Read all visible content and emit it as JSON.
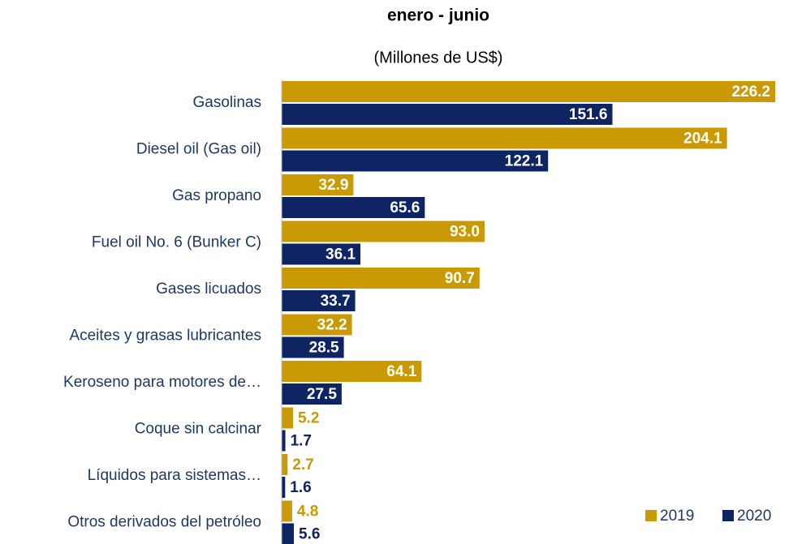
{
  "chart_data": {
    "type": "barh",
    "title": "enero - junio",
    "subtitle": "(Millones de US$)",
    "categories": [
      "Gasolinas",
      "Diesel oil (Gas oil)",
      "Gas propano",
      "Fuel oil No. 6 (Bunker C)",
      "Gases licuados",
      "Aceites y grasas lubricantes",
      "Keroseno para motores de…",
      "Coque sin calcinar",
      "Líquidos para sistemas…",
      "Otros derivados del petróleo"
    ],
    "series": [
      {
        "name": "2019",
        "color": "#c99a06",
        "values": [
          226.2,
          204.1,
          32.9,
          93.0,
          90.7,
          32.2,
          64.1,
          5.2,
          2.7,
          4.8
        ],
        "value_labels": [
          "226.2",
          "204.1",
          "32.9",
          "93.0",
          "90.7",
          "32.2",
          "64.1",
          "5.2",
          "2.7",
          "4.8"
        ]
      },
      {
        "name": "2020",
        "color": "#0f2463",
        "values": [
          151.6,
          122.1,
          65.6,
          36.1,
          33.7,
          28.5,
          27.5,
          1.7,
          1.6,
          5.6
        ],
        "value_labels": [
          "151.6",
          "122.1",
          "65.6",
          "36.1",
          "33.7",
          "28.5",
          "27.5",
          "1.7",
          "1.6",
          "5.6"
        ]
      }
    ],
    "legend": "bottom-right"
  }
}
